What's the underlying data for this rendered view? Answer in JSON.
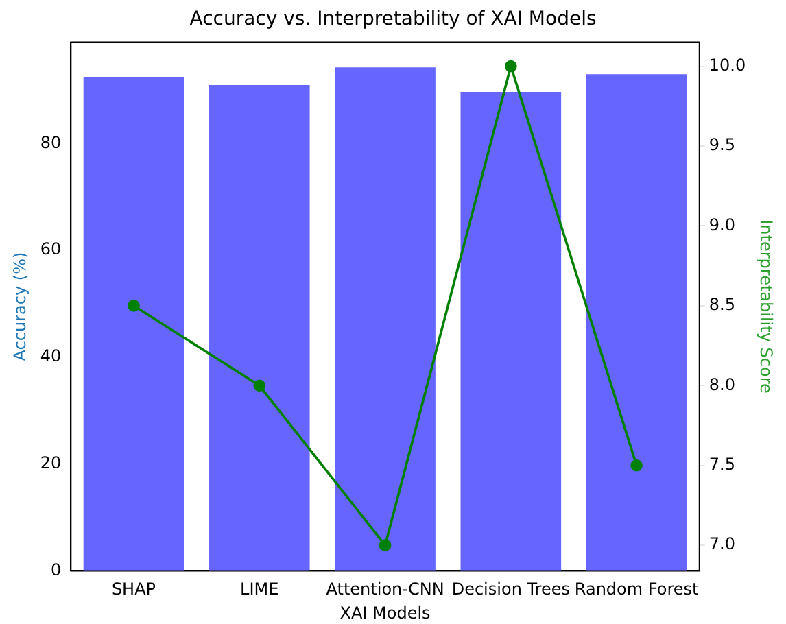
{
  "chart_data": {
    "type": "bar",
    "title": "Accuracy vs. Interpretability of XAI Models",
    "xlabel": "XAI Models",
    "ylabel": "Accuracy (%)",
    "y2label": "Interpretability Score",
    "categories": [
      "SHAP",
      "LIME",
      "Attention-CNN",
      "Decision Trees",
      "Random Forest"
    ],
    "series": [
      {
        "color": "#6666ff",
        "values": [
          92.5,
          91,
          94.3,
          89.7,
          93
        ]
      },
      {
        "type": "line",
        "axis": "y2",
        "color": "#008000",
        "values": [
          8.5,
          8.0,
          7.0,
          10.0,
          7.5
        ]
      }
    ],
    "ylim": [
      0,
      99
    ],
    "yticks": [
      0,
      20,
      40,
      60,
      80
    ],
    "y2lim": [
      6.84,
      10.15
    ],
    "y2ticks": [
      {
        "value": 7,
        "label": "7.0"
      },
      7.5,
      {
        "value": 8,
        "label": "8.0"
      },
      8.5,
      {
        "value": 9,
        "label": "9.0"
      },
      9.5,
      {
        "value": 10,
        "label": "10.0"
      }
    ],
    "marker": "circle",
    "grid": false,
    "legend": false
  }
}
